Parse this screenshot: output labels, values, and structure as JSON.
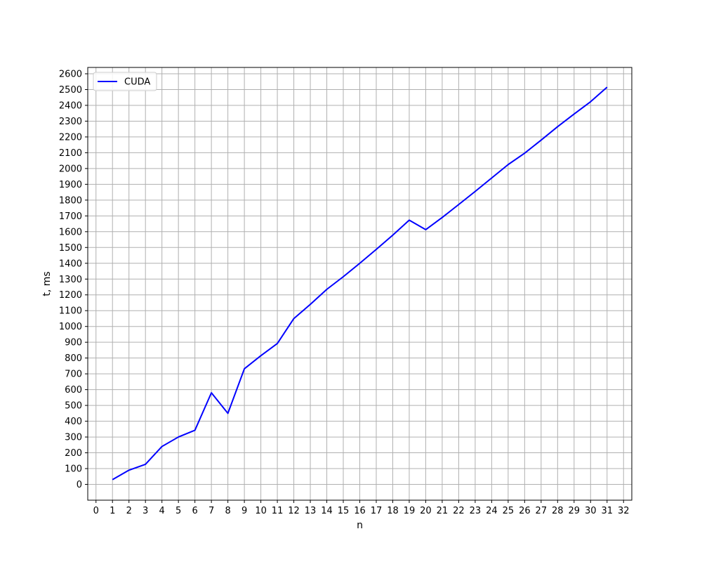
{
  "chart_data": {
    "type": "line",
    "title": "",
    "xlabel": "n",
    "ylabel": "t, ms",
    "xlim": [
      -0.5,
      32.5
    ],
    "ylim": [
      -100,
      2640
    ],
    "x_ticks": [
      0,
      1,
      2,
      3,
      4,
      5,
      6,
      7,
      8,
      9,
      10,
      11,
      12,
      13,
      14,
      15,
      16,
      17,
      18,
      19,
      20,
      21,
      22,
      23,
      24,
      25,
      26,
      27,
      28,
      29,
      30,
      31,
      32
    ],
    "y_ticks": [
      0,
      100,
      200,
      300,
      400,
      500,
      600,
      700,
      800,
      900,
      1000,
      1100,
      1200,
      1300,
      1400,
      1500,
      1600,
      1700,
      1800,
      1900,
      2000,
      2100,
      2200,
      2300,
      2400,
      2500,
      2600
    ],
    "grid": true,
    "legend_position": "top-left",
    "series": [
      {
        "name": "CUDA",
        "color": "#0000ff",
        "x": [
          1,
          2,
          3,
          4,
          5,
          6,
          7,
          8,
          9,
          10,
          11,
          12,
          13,
          14,
          15,
          16,
          17,
          18,
          19,
          20,
          21,
          22,
          23,
          24,
          25,
          26,
          27,
          28,
          29,
          30,
          31
        ],
        "y": [
          30,
          90,
          127,
          240,
          300,
          343,
          580,
          450,
          732,
          815,
          892,
          1050,
          1140,
          1235,
          1315,
          1400,
          1488,
          1578,
          1673,
          1613,
          1690,
          1772,
          1855,
          1940,
          2025,
          2097,
          2180,
          2265,
          2345,
          2423,
          2515
        ]
      }
    ]
  }
}
